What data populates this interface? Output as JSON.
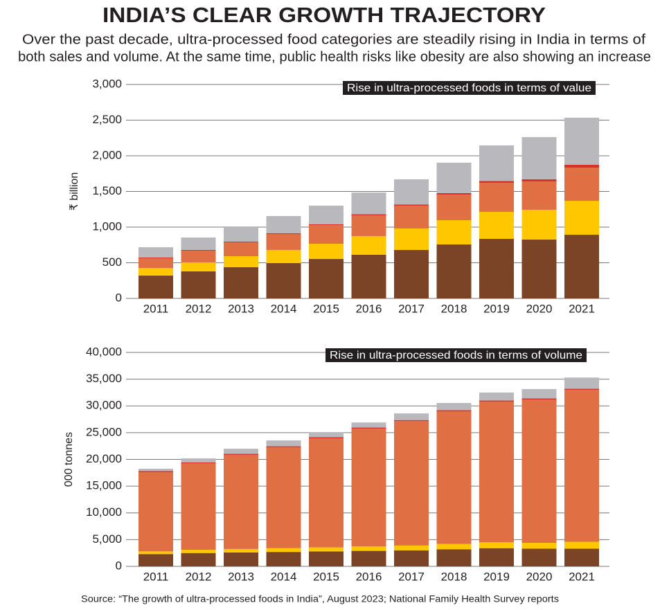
{
  "title": "INDIA’S CLEAR GROWTH TRAJECTORY",
  "subtitle": [
    "Over the past decade, ultra-processed food categories are steadily rising in India in terms of",
    "both sales and volume. At the same time, public health risks like obesity are also showing an increase"
  ],
  "source": "Source: “The growth of ultra-processed foods in India”, August 2023; National Family Health Survey reports",
  "chart_data": [
    {
      "type": "bar",
      "stacked": true,
      "ylabel": "₹ billion",
      "annotation": "Rise in ultra-processed foods in terms of value",
      "grid": true,
      "categories": [
        "2011",
        "2012",
        "2013",
        "2014",
        "2015",
        "2016",
        "2017",
        "2018",
        "2019",
        "2020",
        "2021"
      ],
      "series": [
        {
          "color": "#7b4426",
          "values": [
            320,
            379,
            437,
            495,
            553,
            612,
            680,
            757,
            835,
            825,
            893
          ]
        },
        {
          "color": "#ffc700",
          "values": [
            107,
            126,
            155,
            185,
            214,
            262,
            301,
            340,
            379,
            418,
            476
          ]
        },
        {
          "color": "#e07044",
          "values": [
            136,
            165,
            194,
            223,
            262,
            291,
            320,
            359,
            407,
            398,
            466
          ]
        },
        {
          "color": "#d9302a",
          "values": [
            10,
            10,
            10,
            12,
            12,
            15,
            15,
            20,
            25,
            30,
            40
          ]
        },
        {
          "color": "#b9b9bd",
          "values": [
            145,
            174,
            214,
            240,
            260,
            305,
            354,
            427,
            500,
            591,
            659
          ]
        }
      ],
      "ylim": [
        0,
        3000
      ],
      "yticks": [
        0,
        500,
        {
          "value": 1000,
          "label": "1,000"
        },
        {
          "value": 1500,
          "label": "1,500"
        },
        {
          "value": 2000,
          "label": "2,000"
        },
        {
          "value": 2500,
          "label": "2,500"
        },
        {
          "value": 3000,
          "label": "3,000"
        }
      ]
    },
    {
      "type": "bar",
      "stacked": true,
      "ylabel": "000 tonnes",
      "annotation": "Rise in ultra-processed foods in terms of volume",
      "grid": true,
      "categories": [
        "2011",
        "2012",
        "2013",
        "2014",
        "2015",
        "2016",
        "2017",
        "2018",
        "2019",
        "2020",
        "2021"
      ],
      "series": [
        {
          "color": "#7b4426",
          "values": [
            2300,
            2500,
            2600,
            2700,
            2800,
            2900,
            3000,
            3200,
            3400,
            3300,
            3300
          ]
        },
        {
          "color": "#ffc700",
          "values": [
            500,
            600,
            650,
            700,
            750,
            850,
            900,
            1000,
            1100,
            1100,
            1300
          ]
        },
        {
          "color": "#e07044",
          "values": [
            14800,
            16150,
            17600,
            18850,
            20400,
            22000,
            23250,
            24800,
            26300,
            26800,
            28400
          ]
        },
        {
          "color": "#d9302a",
          "values": [
            200,
            200,
            200,
            200,
            200,
            200,
            200,
            200,
            200,
            200,
            200
          ]
        },
        {
          "color": "#b9b9bd",
          "values": [
            450,
            750,
            950,
            1100,
            950,
            950,
            1250,
            1350,
            1500,
            1750,
            2100
          ]
        }
      ],
      "ylim": [
        0,
        40000
      ],
      "yticks": [
        0,
        {
          "value": 5000,
          "label": "5,000"
        },
        {
          "value": 10000,
          "label": "10,000"
        },
        {
          "value": 15000,
          "label": "15,000"
        },
        {
          "value": 20000,
          "label": "20,000"
        },
        {
          "value": 25000,
          "label": "25,000"
        },
        {
          "value": 30000,
          "label": "30,000"
        },
        {
          "value": 35000,
          "label": "35,000"
        },
        {
          "value": 40000,
          "label": "40,000"
        }
      ]
    }
  ]
}
